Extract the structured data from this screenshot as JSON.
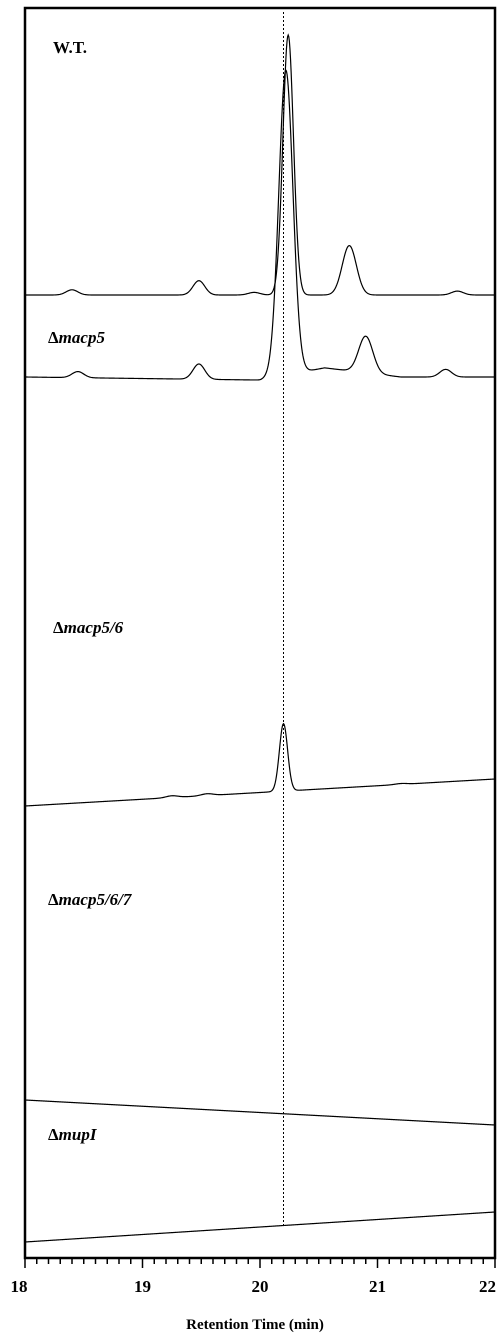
{
  "chart_data": {
    "type": "line",
    "title": "",
    "xlabel": "Retention Time (min)",
    "ylabel": "",
    "xlim": [
      18,
      22
    ],
    "x_ticks": [
      "18",
      "19",
      "20",
      "21",
      "22"
    ],
    "grid": false,
    "legend": "none",
    "reference_line": {
      "x": 20.2,
      "style": "dotted"
    },
    "series": [
      {
        "name": "W.T.",
        "italic_prefix": "",
        "baseline": [
          [
            18,
            0
          ],
          [
            22,
            0
          ]
        ],
        "peaks": [
          {
            "x": 18.4,
            "height": 0.02,
            "width": 0.05
          },
          {
            "x": 19.48,
            "height": 0.055,
            "width": 0.05
          },
          {
            "x": 19.95,
            "height": 0.01,
            "width": 0.05
          },
          {
            "x": 20.24,
            "height": 1.0,
            "width": 0.045
          },
          {
            "x": 20.76,
            "height": 0.19,
            "width": 0.06
          },
          {
            "x": 21.68,
            "height": 0.015,
            "width": 0.05
          }
        ]
      },
      {
        "name": "Δmacp5",
        "italic_prefix": "Δ",
        "baseline": [
          [
            18,
            0
          ],
          [
            20.0,
            -0.01
          ],
          [
            20.55,
            0.03
          ],
          [
            21.2,
            0.0
          ],
          [
            22,
            0
          ]
        ],
        "peaks": [
          {
            "x": 18.45,
            "height": 0.02,
            "width": 0.05
          },
          {
            "x": 19.48,
            "height": 0.05,
            "width": 0.05
          },
          {
            "x": 20.22,
            "height": 1.0,
            "width": 0.06
          },
          {
            "x": 20.9,
            "height": 0.12,
            "width": 0.06
          },
          {
            "x": 21.58,
            "height": 0.025,
            "width": 0.05
          }
        ]
      },
      {
        "name": "Δmacp5/6",
        "italic_prefix": "Δ",
        "baseline": [
          [
            18,
            0
          ],
          [
            22,
            0.3
          ]
        ],
        "peaks": [
          {
            "x": 19.25,
            "height": 0.02,
            "width": 0.05
          },
          {
            "x": 19.55,
            "height": 0.02,
            "width": 0.05
          },
          {
            "x": 20.2,
            "height": 0.75,
            "width": 0.035
          },
          {
            "x": 21.2,
            "height": 0.01,
            "width": 0.05
          }
        ]
      },
      {
        "name": "Δmacp5/6/7",
        "italic_prefix": "Δ",
        "baseline": [
          [
            18,
            0
          ],
          [
            22,
            -0.25
          ]
        ],
        "peaks": []
      },
      {
        "name": "ΔmupI",
        "italic_prefix": "Δ",
        "baseline": [
          [
            18,
            0
          ],
          [
            22,
            0.3
          ]
        ],
        "peaks": []
      }
    ]
  }
}
